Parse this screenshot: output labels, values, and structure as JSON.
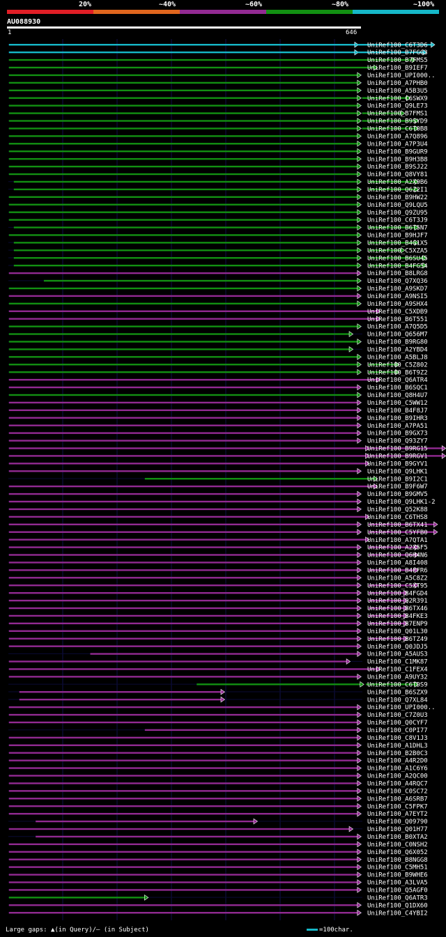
{
  "query": {
    "id": "AU088930",
    "start": "1",
    "end": "646",
    "length": 646
  },
  "identity_legend": [
    {
      "label": "20%",
      "color": "#e01e26"
    },
    {
      "label": "~40%",
      "color": "#e0661e"
    },
    {
      "label": "~60%",
      "color": "#922a92"
    },
    {
      "label": "~80%",
      "color": "#129012"
    },
    {
      "label": "~100%",
      "color": "#16b8c8"
    }
  ],
  "colors": {
    "background": "#000000",
    "grid": "#10104a",
    "row_line": "#0a0a34",
    "gap": "#bb44bb",
    "mark": "#ffff66"
  },
  "footer": {
    "gaps_text": "Large gaps: ▲(in Query)/– (in Subject)",
    "scale_text": "=100char."
  },
  "hits": [
    {
      "name": "UniRef100_C6T3D6",
      "c": 4,
      "s": [
        [
          1,
          635
        ],
        [
          640,
          775
        ]
      ]
    },
    {
      "name": "UniRef100_B7FGG3",
      "c": 4,
      "s": [
        [
          1,
          635
        ],
        [
          640,
          760
        ]
      ]
    },
    {
      "name": "UniRef100_B7FMS5",
      "c": 3,
      "s": [
        [
          1,
          740
        ]
      ]
    },
    {
      "name": "UniRef100_B9IEF7",
      "c": 3,
      "s": [
        [
          1,
          670
        ]
      ]
    },
    {
      "name": "UniRef100_UPI000..",
      "c": 3,
      "s": [
        [
          1,
          640
        ]
      ]
    },
    {
      "name": "UniRef100_A7PHB0",
      "c": 3,
      "s": [
        [
          1,
          640
        ]
      ]
    },
    {
      "name": "UniRef100_A5B3U5",
      "c": 3,
      "s": [
        [
          1,
          640
        ]
      ]
    },
    {
      "name": "UniRef100_C6SWX9",
      "c": 3,
      "s": [
        [
          1,
          640
        ],
        [
          648,
          730
        ]
      ]
    },
    {
      "name": "UniRef100_Q9LE73",
      "c": 3,
      "s": [
        [
          1,
          640
        ]
      ]
    },
    {
      "name": "UniRef100_B7FMS1",
      "c": 3,
      "s": [
        [
          1,
          640
        ],
        [
          648,
          720
        ]
      ]
    },
    {
      "name": "UniRef100_B9SYD9",
      "c": 3,
      "s": [
        [
          1,
          640
        ],
        [
          648,
          745
        ]
      ]
    },
    {
      "name": "UniRef100_C6T0B8",
      "c": 3,
      "s": [
        [
          1,
          640
        ],
        [
          648,
          745
        ]
      ]
    },
    {
      "name": "UniRef100_A7Q896",
      "c": 3,
      "s": [
        [
          1,
          640
        ]
      ]
    },
    {
      "name": "UniRef100_A7P3U4",
      "c": 3,
      "s": [
        [
          1,
          640
        ]
      ]
    },
    {
      "name": "UniRef100_B9GUR9",
      "c": 3,
      "s": [
        [
          1,
          640
        ]
      ]
    },
    {
      "name": "UniRef100_B9H3B8",
      "c": 3,
      "s": [
        [
          1,
          640
        ]
      ]
    },
    {
      "name": "UniRef100_B9SJ22",
      "c": 3,
      "s": [
        [
          1,
          640
        ]
      ]
    },
    {
      "name": "UniRef100_Q8VY81",
      "c": 3,
      "s": [
        [
          1,
          640
        ]
      ]
    },
    {
      "name": "UniRef100_A2X9B6",
      "c": 3,
      "s": [
        [
          10,
          640
        ],
        [
          660,
          745
        ]
      ]
    },
    {
      "name": "UniRef100_Q6Z2I1",
      "c": 3,
      "s": [
        [
          10,
          640
        ],
        [
          660,
          745
        ]
      ]
    },
    {
      "name": "UniRef100_B9HW22",
      "c": 3,
      "s": [
        [
          1,
          640
        ]
      ]
    },
    {
      "name": "UniRef100_Q9LQU5",
      "c": 3,
      "s": [
        [
          1,
          640
        ]
      ]
    },
    {
      "name": "UniRef100_Q9ZU95",
      "c": 3,
      "s": [
        [
          1,
          640
        ]
      ]
    },
    {
      "name": "UniRef100_C6T3J9",
      "c": 3,
      "s": [
        [
          1,
          640
        ]
      ]
    },
    {
      "name": "UniRef100_B6T5N7",
      "c": 3,
      "s": [
        [
          10,
          640
        ],
        [
          660,
          745
        ]
      ]
    },
    {
      "name": "UniRef100_B9HJF7",
      "c": 3,
      "s": [
        [
          1,
          640
        ]
      ]
    },
    {
      "name": "UniRef100_B4G1X5",
      "c": 3,
      "s": [
        [
          10,
          640
        ],
        [
          660,
          745
        ]
      ]
    },
    {
      "name": "UniRef100_C5XZA5",
      "c": 3,
      "s": [
        [
          10,
          640
        ],
        [
          660,
          720
        ]
      ]
    },
    {
      "name": "UniRef100_B6SU45",
      "c": 3,
      "s": [
        [
          10,
          640
        ],
        [
          660,
          760
        ]
      ]
    },
    {
      "name": "UniRef100_B4FG54",
      "c": 3,
      "s": [
        [
          10,
          640
        ],
        [
          660,
          760
        ]
      ]
    },
    {
      "name": "UniRef100_B8LRG8",
      "c": 2,
      "s": [
        [
          1,
          640
        ]
      ]
    },
    {
      "name": "UniRef100_Q7XQ36",
      "c": 3,
      "s": [
        [
          65,
          640
        ]
      ]
    },
    {
      "name": "UniRef100_A9SKD7",
      "c": 3,
      "s": [
        [
          1,
          640
        ]
      ]
    },
    {
      "name": "UniRef100_A9NSI5",
      "c": 2,
      "s": [
        [
          1,
          640
        ]
      ]
    },
    {
      "name": "UniRef100_A9SHX4",
      "c": 3,
      "s": [
        [
          1,
          640
        ]
      ]
    },
    {
      "name": "UniRef100_C5XDB9",
      "c": 2,
      "s": [
        [
          1,
          675
        ]
      ]
    },
    {
      "name": "UniRef100_B6T551",
      "c": 2,
      "s": [
        [
          1,
          675
        ]
      ]
    },
    {
      "name": "UniRef100_A7Q5D5",
      "c": 3,
      "s": [
        [
          1,
          640
        ]
      ]
    },
    {
      "name": "UniRef100_Q656M7",
      "c": 3,
      "s": [
        [
          1,
          625
        ]
      ]
    },
    {
      "name": "UniRef100_B9RG80",
      "c": 3,
      "s": [
        [
          1,
          640
        ]
      ]
    },
    {
      "name": "UniRef100_A2YBD4",
      "c": 3,
      "s": [
        [
          1,
          625
        ]
      ]
    },
    {
      "name": "UniRef100_A5BLJ8",
      "c": 3,
      "s": [
        [
          1,
          640
        ]
      ]
    },
    {
      "name": "UniRef100_C5Z802",
      "c": 3,
      "s": [
        [
          1,
          640
        ],
        [
          660,
          710
        ]
      ]
    },
    {
      "name": "UniRef100_B6T9Z2",
      "c": 3,
      "s": [
        [
          1,
          640
        ],
        [
          660,
          710
        ]
      ]
    },
    {
      "name": "UniRef100_Q6ATR4",
      "c": 2,
      "s": [
        [
          1,
          675
        ]
      ]
    },
    {
      "name": "UniRef100_B6SQC1",
      "c": 2,
      "s": [
        [
          1,
          640
        ]
      ]
    },
    {
      "name": "UniRef100_Q8H4U7",
      "c": 3,
      "s": [
        [
          1,
          640
        ]
      ]
    },
    {
      "name": "UniRef100_C5WW12",
      "c": 2,
      "s": [
        [
          1,
          640
        ]
      ]
    },
    {
      "name": "UniRef100_B4F8J7",
      "c": 2,
      "s": [
        [
          1,
          640
        ]
      ]
    },
    {
      "name": "UniRef100_B9IHR3",
      "c": 2,
      "s": [
        [
          1,
          640
        ]
      ]
    },
    {
      "name": "UniRef100_A7PA51",
      "c": 2,
      "s": [
        [
          1,
          640
        ]
      ]
    },
    {
      "name": "UniRef100_B9GX73",
      "c": 2,
      "s": [
        [
          1,
          640
        ]
      ]
    },
    {
      "name": "UniRef100_Q93ZY7",
      "c": 2,
      "s": [
        [
          1,
          640
        ]
      ]
    },
    {
      "name": "UniRef100_B9RG15",
      "c": 2,
      "s": [
        [
          1,
          655
        ],
        [
          660,
          795
        ]
      ]
    },
    {
      "name": "UniRef100_B9RGV1",
      "c": 2,
      "s": [
        [
          1,
          655
        ],
        [
          660,
          795
        ]
      ]
    },
    {
      "name": "UniRef100_B9GYV1",
      "c": 2,
      "s": [
        [
          1,
          655
        ]
      ]
    },
    {
      "name": "UniRef100_Q9LHK1",
      "c": 2,
      "s": [
        [
          1,
          640
        ]
      ]
    },
    {
      "name": "UniRef100_B9I2C1",
      "c": 3,
      "s": [
        [
          250,
          670
        ]
      ]
    },
    {
      "name": "UniRef100_B9F6W7",
      "c": 2,
      "s": [
        [
          1,
          670
        ]
      ]
    },
    {
      "name": "UniRef100_B9GMV5",
      "c": 2,
      "s": [
        [
          1,
          640
        ]
      ]
    },
    {
      "name": "UniRef100_Q9LHK1-2",
      "c": 2,
      "s": [
        [
          1,
          640
        ]
      ]
    },
    {
      "name": "UniRef100_Q52K88",
      "c": 2,
      "s": [
        [
          1,
          640
        ]
      ]
    },
    {
      "name": "UniRef100_C6THS8",
      "c": 2,
      "s": [
        [
          1,
          655
        ]
      ]
    },
    {
      "name": "UniRef100_B6TX41",
      "c": 2,
      "s": [
        [
          1,
          640
        ],
        [
          660,
          780
        ]
      ]
    },
    {
      "name": "UniRef100_C5YFB0",
      "c": 2,
      "s": [
        [
          1,
          640
        ],
        [
          660,
          780
        ]
      ]
    },
    {
      "name": "UniRef100_A7QTA1",
      "c": 2,
      "s": [
        [
          1,
          655
        ]
      ]
    },
    {
      "name": "UniRef100_A2X5F5",
      "c": 2,
      "s": [
        [
          1,
          640
        ],
        [
          660,
          745
        ]
      ]
    },
    {
      "name": "UniRef100_Q6H4N6",
      "c": 2,
      "s": [
        [
          1,
          640
        ],
        [
          660,
          745
        ]
      ]
    },
    {
      "name": "UniRef100_A8I408",
      "c": 2,
      "s": [
        [
          1,
          640
        ]
      ]
    },
    {
      "name": "UniRef100_B4FFR6",
      "c": 2,
      "s": [
        [
          1,
          640
        ],
        [
          660,
          745
        ]
      ]
    },
    {
      "name": "UniRef100_A5C8Z2",
      "c": 2,
      "s": [
        [
          1,
          640
        ]
      ]
    },
    {
      "name": "UniRef100_C5XT95",
      "c": 2,
      "s": [
        [
          1,
          640
        ],
        [
          660,
          745
        ]
      ]
    },
    {
      "name": "UniRef100_B4FGD4",
      "c": 2,
      "s": [
        [
          1,
          640
        ],
        [
          660,
          725
        ]
      ]
    },
    {
      "name": "UniRef100_Q2R391",
      "c": 2,
      "s": [
        [
          1,
          640
        ],
        [
          660,
          725
        ]
      ]
    },
    {
      "name": "UniRef100_B6TX46",
      "c": 2,
      "s": [
        [
          1,
          640
        ],
        [
          660,
          725
        ]
      ]
    },
    {
      "name": "UniRef100_B4FKE3",
      "c": 2,
      "s": [
        [
          1,
          640
        ],
        [
          660,
          725
        ]
      ]
    },
    {
      "name": "UniRef100_B7ENP9",
      "c": 2,
      "s": [
        [
          1,
          640
        ],
        [
          660,
          725
        ]
      ]
    },
    {
      "name": "UniRef100_Q01L30",
      "c": 2,
      "s": [
        [
          1,
          640
        ]
      ]
    },
    {
      "name": "UniRef100_B6TZ49",
      "c": 2,
      "s": [
        [
          1,
          640
        ],
        [
          660,
          725
        ]
      ]
    },
    {
      "name": "UniRef100_Q0JDJ5",
      "c": 2,
      "s": [
        [
          1,
          640
        ]
      ]
    },
    {
      "name": "UniRef100_A5AUS3",
      "c": 2,
      "s": [
        [
          150,
          640
        ]
      ]
    },
    {
      "name": "UniRef100_C1MK87",
      "c": 2,
      "s": [
        [
          1,
          620
        ]
      ]
    },
    {
      "name": "UniRef100_C1FEX4",
      "c": 2,
      "s": [
        [
          1,
          675
        ]
      ]
    },
    {
      "name": "UniRef100_A9UY32",
      "c": 2,
      "s": [
        [
          1,
          640
        ]
      ]
    },
    {
      "name": "UniRef100_C6TDS9",
      "c": 3,
      "s": [
        [
          345,
          645
        ],
        [
          655,
          745
        ]
      ]
    },
    {
      "name": "UniRef100_B6SZX9",
      "c": 2,
      "s": [
        [
          20,
          390
        ]
      ]
    },
    {
      "name": "UniRef100_Q7XL84",
      "c": 2,
      "s": [
        [
          20,
          390
        ]
      ]
    },
    {
      "name": "UniRef100_UPI000..",
      "c": 2,
      "s": [
        [
          1,
          640
        ]
      ]
    },
    {
      "name": "UniRef100_C7Z0U3",
      "c": 2,
      "s": [
        [
          1,
          640
        ]
      ]
    },
    {
      "name": "UniRef100_Q0CYF7",
      "c": 2,
      "s": [
        [
          1,
          640
        ]
      ]
    },
    {
      "name": "UniRef100_C0PI77",
      "c": 2,
      "s": [
        [
          250,
          640
        ]
      ]
    },
    {
      "name": "UniRef100_C8V1J3",
      "c": 2,
      "s": [
        [
          1,
          640
        ]
      ]
    },
    {
      "name": "UniRef100_A1DHL3",
      "c": 2,
      "s": [
        [
          1,
          640
        ]
      ]
    },
    {
      "name": "UniRef100_B2B0C3",
      "c": 2,
      "s": [
        [
          1,
          640
        ]
      ]
    },
    {
      "name": "UniRef100_A4R2D0",
      "c": 2,
      "s": [
        [
          1,
          640
        ]
      ]
    },
    {
      "name": "UniRef100_A1C6Y6",
      "c": 2,
      "s": [
        [
          1,
          640
        ]
      ]
    },
    {
      "name": "UniRef100_A2QC00",
      "c": 2,
      "s": [
        [
          1,
          640
        ]
      ]
    },
    {
      "name": "UniRef100_A4RQC7",
      "c": 2,
      "s": [
        [
          1,
          640
        ]
      ]
    },
    {
      "name": "UniRef100_C0SC72",
      "c": 2,
      "s": [
        [
          1,
          640
        ]
      ]
    },
    {
      "name": "UniRef100_A6SRB7",
      "c": 2,
      "s": [
        [
          1,
          640
        ]
      ]
    },
    {
      "name": "UniRef100_C5FPK7",
      "c": 2,
      "s": [
        [
          1,
          640
        ]
      ]
    },
    {
      "name": "UniRef100_A7EYT2",
      "c": 2,
      "s": [
        [
          1,
          640
        ]
      ]
    },
    {
      "name": "UniRef100_Q09790",
      "c": 2,
      "s": [
        [
          50,
          450
        ]
      ]
    },
    {
      "name": "UniRef100_Q01H77",
      "c": 2,
      "s": [
        [
          1,
          625
        ]
      ]
    },
    {
      "name": "UniRef100_B0XTA2",
      "c": 2,
      "s": [
        [
          50,
          640
        ]
      ]
    },
    {
      "name": "UniRef100_C0NSH2",
      "c": 2,
      "s": [
        [
          1,
          640
        ]
      ]
    },
    {
      "name": "UniRef100_Q6X052",
      "c": 2,
      "s": [
        [
          1,
          640
        ]
      ]
    },
    {
      "name": "UniRef100_B8NGG8",
      "c": 2,
      "s": [
        [
          1,
          640
        ]
      ]
    },
    {
      "name": "UniRef100_C5MH51",
      "c": 2,
      "s": [
        [
          1,
          640
        ]
      ]
    },
    {
      "name": "UniRef100_B9WHE6",
      "c": 2,
      "s": [
        [
          1,
          640
        ]
      ]
    },
    {
      "name": "UniRef100_A3LVA5",
      "c": 2,
      "s": [
        [
          1,
          640
        ]
      ]
    },
    {
      "name": "UniRef100_Q5AGF0",
      "c": 2,
      "s": [
        [
          1,
          640
        ]
      ]
    },
    {
      "name": "UniRef100_Q6ATR3",
      "c": 3,
      "s": [
        [
          1,
          250
        ]
      ]
    },
    {
      "name": "UniRef100_Q1DX60",
      "c": 2,
      "s": [
        [
          1,
          640
        ]
      ]
    },
    {
      "name": "UniRef100_C4YBI2",
      "c": 2,
      "s": [
        [
          1,
          640
        ]
      ]
    }
  ]
}
